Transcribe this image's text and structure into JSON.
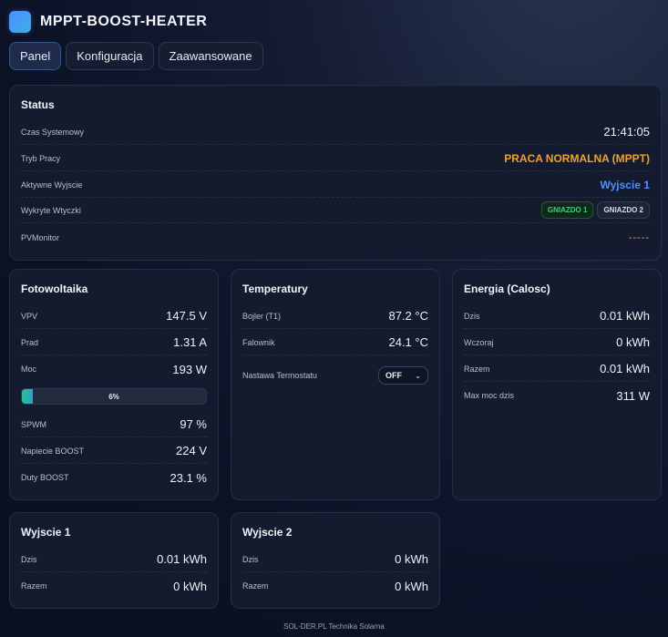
{
  "app": {
    "title": "MPPT-BOOST-HEATER"
  },
  "tabs": [
    {
      "label": "Panel"
    },
    {
      "label": "Konfiguracja"
    },
    {
      "label": "Zaawansowane"
    }
  ],
  "status": {
    "title": "Status",
    "system_time_label": "Czas Systemowy",
    "system_time": "21:41:05",
    "mode_label": "Tryb Pracy",
    "mode": "PRACA NORMALNA (MPPT)",
    "active_output_label": "Aktywne Wyjscie",
    "active_output": "Wyjscie 1",
    "plugs_label": "Wykryte Wtyczki",
    "plug1": "GNIAZDO 1",
    "plug2": "GNIAZDO 2",
    "pvmonitor_label": "PVMonitor",
    "pvmonitor": "-----"
  },
  "pv": {
    "title": "Fotowoltaika",
    "vpv_label": "VPV",
    "vpv": "147.5 V",
    "current_label": "Prad",
    "current": "1.31 A",
    "power_label": "Moc",
    "power": "193 W",
    "progress_percent": 6,
    "progress_text": "6%",
    "spwm_label": "SPWM",
    "spwm": "97 %",
    "boost_voltage_label": "Napiecie BOOST",
    "boost_voltage": "224 V",
    "duty_label": "Duty BOOST",
    "duty": "23.1 %"
  },
  "temps": {
    "title": "Temperatury",
    "boiler_label": "Bojler (T1)",
    "boiler": "87.2 °C",
    "inverter_label": "Falownik",
    "inverter": "24.1 °C",
    "thermostat_label": "Nastawa Termostatu",
    "thermostat_value": "OFF"
  },
  "energy": {
    "title": "Energia (Calosc)",
    "today_label": "Dzis",
    "today": "0.01 kWh",
    "yesterday_label": "Wczoraj",
    "yesterday": "0 kWh",
    "total_label": "Razem",
    "total": "0.01 kWh",
    "max_label": "Max moc dzis",
    "max": "311 W"
  },
  "out1": {
    "title": "Wyjscie 1",
    "today_label": "Dzis",
    "today": "0.01 kWh",
    "total_label": "Razem",
    "total": "0 kWh"
  },
  "out2": {
    "title": "Wyjscie 2",
    "today_label": "Dzis",
    "today": "0 kWh",
    "total_label": "Razem",
    "total": "0 kWh"
  },
  "footer": {
    "text": "SOL-DER.PL Technika Solarna"
  }
}
